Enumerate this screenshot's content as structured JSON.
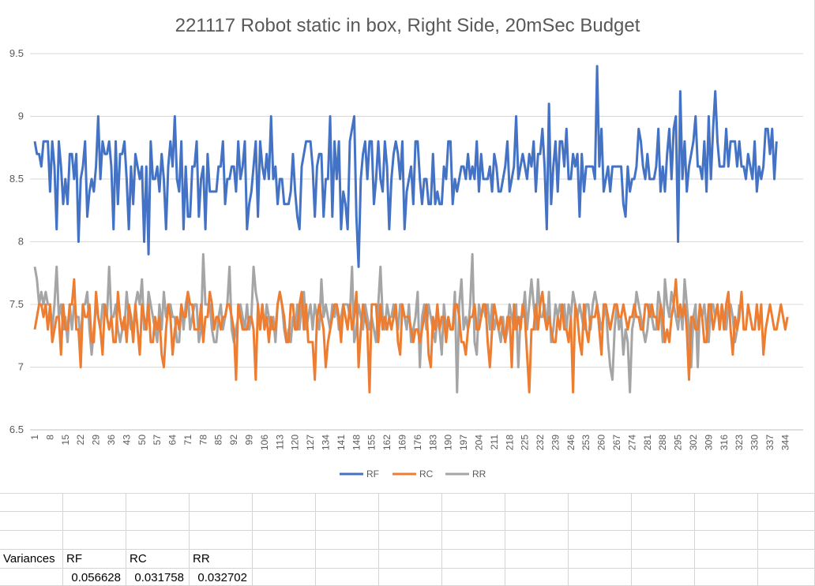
{
  "chart_data": {
    "type": "line",
    "title": "221117 Robot static in box, Right Side, 20mSec Budget",
    "ylim": [
      6.5,
      9.5
    ],
    "yticks": [
      "6.5",
      "7",
      "7.5",
      "8",
      "8.5",
      "9",
      "9.5"
    ],
    "x_count": 350,
    "x_tick_labels": [
      1,
      8,
      15,
      22,
      29,
      36,
      43,
      50,
      57,
      64,
      71,
      78,
      85,
      92,
      99,
      106,
      113,
      120,
      127,
      134,
      141,
      148,
      155,
      162,
      169,
      176,
      183,
      190,
      197,
      204,
      211,
      218,
      225,
      232,
      239,
      246,
      253,
      260,
      267,
      274,
      281,
      288,
      295,
      302,
      309,
      316,
      323,
      330,
      337,
      344
    ],
    "legend_position": "bottom",
    "series": [
      {
        "name": "RF",
        "color": "#4472C4",
        "values": [
          8.8,
          8.7,
          8.7,
          8.6,
          8.8,
          8.8,
          8.8,
          8.4,
          8.8,
          8.6,
          8.1,
          8.8,
          8.6,
          8.3,
          8.5,
          8.3,
          8.7,
          8.7,
          8.5,
          8.7,
          8.0,
          8.5,
          8.6,
          8.8,
          8.2,
          8.4,
          8.5,
          8.4,
          8.6,
          9.0,
          8.5,
          8.8,
          8.7,
          8.7,
          8.8,
          8.6,
          8.1,
          8.8,
          8.3,
          8.7,
          8.7,
          8.8,
          8.5,
          8.1,
          8.6,
          8.3,
          8.7,
          8.6,
          8.5,
          8.6,
          8.0,
          8.6,
          7.9,
          8.8,
          8.5,
          8.5,
          8.6,
          8.4,
          8.7,
          8.5,
          8.1,
          8.6,
          8.8,
          8.6,
          9.0,
          8.5,
          8.4,
          8.8,
          8.1,
          8.6,
          8.2,
          8.2,
          8.6,
          8.6,
          8.8,
          8.2,
          8.5,
          8.6,
          8.1,
          8.7,
          8.4,
          8.4,
          8.4,
          8.4,
          8.6,
          8.6,
          8.8,
          8.3,
          8.5,
          8.5,
          8.6,
          8.6,
          8.4,
          8.8,
          8.5,
          8.6,
          8.8,
          8.1,
          8.3,
          8.4,
          8.6,
          8.8,
          8.2,
          8.8,
          8.6,
          8.5,
          8.7,
          8.5,
          9.0,
          8.5,
          8.6,
          8.3,
          8.5,
          8.5,
          8.3,
          8.3,
          8.3,
          8.4,
          8.7,
          8.4,
          8.2,
          8.1,
          8.6,
          8.7,
          8.8,
          8.8,
          8.8,
          8.6,
          8.2,
          8.6,
          8.7,
          8.7,
          8.2,
          8.5,
          8.5,
          9.0,
          8.2,
          8.8,
          8.5,
          8.8,
          8.1,
          8.4,
          8.3,
          8.1,
          8.8,
          8.9,
          9.0,
          8.2,
          7.8,
          8.5,
          8.7,
          8.8,
          8.5,
          8.8,
          8.8,
          8.3,
          8.5,
          8.8,
          8.5,
          8.4,
          8.8,
          8.6,
          8.1,
          8.5,
          8.7,
          8.8,
          8.7,
          8.5,
          8.8,
          8.1,
          8.4,
          8.5,
          8.6,
          8.3,
          8.8,
          8.8,
          8.5,
          8.3,
          8.5,
          8.5,
          8.3,
          8.3,
          8.7,
          8.3,
          8.4,
          8.3,
          8.3,
          8.6,
          8.5,
          8.8,
          8.8,
          8.3,
          8.5,
          8.4,
          8.5,
          8.6,
          8.6,
          8.5,
          8.7,
          8.5,
          8.6,
          8.5,
          8.8,
          8.4,
          8.7,
          8.5,
          8.5,
          8.5,
          8.6,
          8.4,
          8.7,
          8.6,
          8.4,
          8.4,
          8.5,
          8.6,
          8.8,
          8.4,
          8.5,
          8.6,
          9.0,
          8.5,
          8.6,
          8.7,
          8.6,
          8.5,
          8.7,
          8.6,
          8.8,
          8.4,
          8.7,
          8.7,
          8.9,
          8.6,
          8.1,
          9.1,
          8.3,
          8.6,
          8.8,
          8.4,
          8.8,
          8.8,
          8.6,
          8.9,
          8.5,
          8.5,
          8.7,
          8.6,
          8.7,
          8.2,
          8.7,
          8.4,
          8.6,
          8.6,
          8.6,
          8.6,
          8.5,
          9.4,
          8.6,
          8.9,
          8.4,
          8.5,
          8.6,
          8.4,
          8.6,
          8.6,
          8.6,
          8.6,
          8.6,
          8.3,
          8.2,
          8.6,
          8.4,
          8.5,
          8.5,
          8.6,
          8.9,
          8.8,
          8.6,
          8.5,
          8.7,
          8.5,
          8.5,
          8.5,
          8.6,
          8.9,
          8.4,
          8.6,
          8.4,
          8.7,
          8.9,
          8.5,
          8.9,
          9.0,
          8.0,
          9.2,
          8.5,
          8.8,
          8.4,
          8.6,
          8.7,
          8.8,
          9.0,
          8.6,
          8.6,
          8.5,
          8.8,
          8.4,
          9.0,
          8.5,
          8.9,
          9.2,
          8.8,
          8.6,
          8.6,
          8.6,
          8.9,
          8.6,
          8.8,
          8.8,
          8.8,
          8.6,
          8.8,
          8.6,
          8.6,
          8.5,
          8.7,
          8.6,
          8.5,
          8.8,
          8.4,
          8.6,
          8.5,
          8.6,
          8.9,
          8.9,
          8.7,
          8.9,
          8.5,
          8.8
        ]
      },
      {
        "name": "RC",
        "color": "#ED7D31",
        "values": [
          7.3,
          7.4,
          7.5,
          7.5,
          7.4,
          7.5,
          7.3,
          7.5,
          7.2,
          7.3,
          7.4,
          7.4,
          7.1,
          7.5,
          7.3,
          7.3,
          7.5,
          7.5,
          7.7,
          7.3,
          7.3,
          7.0,
          7.5,
          7.4,
          7.4,
          7.5,
          7.2,
          7.2,
          7.6,
          7.4,
          7.3,
          7.1,
          7.5,
          7.4,
          7.3,
          7.4,
          7.2,
          7.2,
          7.6,
          7.4,
          7.3,
          7.4,
          7.2,
          7.5,
          7.4,
          7.2,
          7.5,
          7.3,
          7.1,
          7.5,
          7.4,
          7.3,
          7.5,
          7.2,
          7.2,
          7.4,
          7.3,
          7.4,
          7.1,
          7.0,
          7.3,
          7.5,
          7.4,
          7.1,
          7.3,
          7.4,
          7.3,
          7.5,
          7.4,
          7.4,
          7.6,
          7.5,
          7.5,
          7.3,
          7.3,
          7.3,
          7.5,
          7.2,
          7.4,
          7.4,
          7.6,
          7.5,
          7.3,
          7.4,
          7.4,
          7.3,
          7.4,
          7.4,
          7.5,
          7.5,
          7.4,
          7.3,
          6.9,
          7.5,
          7.4,
          7.3,
          7.3,
          7.3,
          7.4,
          7.4,
          7.3,
          6.9,
          7.5,
          7.3,
          7.5,
          7.3,
          7.4,
          7.2,
          7.4,
          7.3,
          7.3,
          7.5,
          7.6,
          7.5,
          7.4,
          7.2,
          7.2,
          7.5,
          7.5,
          7.3,
          7.3,
          7.5,
          7.6,
          7.3,
          7.5,
          7.2,
          7.2,
          7.2,
          6.9,
          7.4,
          7.5,
          7.4,
          7.3,
          7.0,
          7.2,
          7.3,
          7.4,
          7.5,
          7.5,
          7.4,
          7.2,
          7.5,
          7.4,
          7.3,
          7.5,
          7.3,
          7.4,
          7.6,
          7.0,
          7.3,
          7.5,
          7.4,
          7.3,
          6.8,
          7.5,
          7.5,
          7.5,
          7.2,
          7.5,
          7.3,
          7.4,
          7.3,
          7.4,
          7.3,
          7.4,
          7.5,
          7.2,
          7.1,
          7.5,
          7.4,
          7.4,
          7.4,
          7.3,
          7.2,
          7.3,
          7.3,
          7.2,
          7.3,
          7.4,
          7.5,
          7.1,
          7.0,
          7.4,
          7.3,
          7.5,
          7.3,
          7.4,
          7.4,
          7.2,
          7.4,
          7.3,
          7.3,
          7.5,
          7.5,
          7.4,
          7.2,
          7.2,
          7.1,
          7.3,
          7.4,
          7.4,
          7.5,
          7.3,
          7.3,
          7.4,
          7.5,
          7.5,
          7.2,
          7.0,
          7.3,
          7.5,
          7.4,
          7.3,
          7.4,
          7.3,
          7.2,
          7.4,
          7.4,
          7.0,
          7.5,
          7.3,
          7.4,
          7.3,
          7.5,
          7.4,
          7.1,
          6.8,
          7.3,
          7.3,
          7.5,
          7.3,
          7.5,
          7.6,
          7.4,
          7.3,
          7.4,
          7.3,
          7.2,
          7.2,
          7.4,
          7.3,
          7.5,
          7.3,
          7.3,
          7.2,
          7.4,
          6.8,
          7.5,
          7.4,
          7.2,
          7.1,
          7.5,
          7.3,
          7.2,
          7.4,
          7.4,
          7.4,
          7.5,
          7.3,
          7.1,
          7.5,
          7.5,
          7.4,
          7.3,
          7.4,
          7.5,
          7.5,
          7.4,
          7.4,
          7.5,
          7.4,
          7.3,
          7.4,
          7.4,
          7.5,
          7.4,
          7.4,
          7.3,
          7.3,
          7.5,
          7.5,
          7.4,
          7.5,
          7.4,
          7.4,
          7.3,
          7.5,
          7.4,
          7.2,
          7.3,
          7.2,
          7.4,
          7.5,
          7.7,
          7.4,
          7.5,
          7.4,
          7.5,
          7.3,
          6.9,
          7.4,
          7.4,
          7.3,
          7.3,
          7.5,
          7.4,
          7.2,
          7.2,
          7.5,
          7.5,
          7.3,
          7.4,
          7.5,
          7.3,
          7.5,
          7.3,
          7.5,
          7.6,
          7.3,
          7.1,
          7.4,
          7.3,
          7.4,
          7.6,
          7.3,
          7.3,
          7.5,
          7.4,
          7.3,
          7.3,
          7.5,
          7.3,
          7.5,
          7.1,
          7.3,
          7.4,
          7.5,
          7.4,
          7.3,
          7.3,
          7.4,
          7.5,
          7.4,
          7.3,
          7.4
        ]
      },
      {
        "name": "RR",
        "color": "#A5A5A5",
        "values": [
          7.8,
          7.7,
          7.5,
          7.6,
          7.5,
          7.6,
          7.5,
          7.5,
          7.3,
          7.5,
          7.8,
          7.4,
          7.5,
          7.3,
          7.4,
          7.2,
          7.5,
          7.3,
          7.5,
          7.4,
          7.4,
          7.2,
          7.5,
          7.5,
          7.6,
          7.3,
          7.1,
          7.3,
          7.5,
          7.4,
          7.3,
          7.5,
          7.5,
          7.4,
          7.8,
          7.4,
          7.4,
          7.5,
          7.3,
          7.2,
          7.3,
          7.3,
          7.6,
          7.4,
          7.3,
          7.3,
          7.5,
          7.6,
          7.5,
          7.7,
          7.3,
          7.3,
          7.6,
          7.5,
          7.4,
          7.3,
          7.2,
          7.5,
          7.3,
          7.6,
          7.4,
          7.5,
          7.5,
          7.4,
          7.4,
          7.2,
          7.2,
          7.5,
          7.3,
          7.5,
          7.6,
          7.3,
          7.4,
          7.5,
          7.5,
          7.2,
          7.3,
          7.9,
          7.5,
          7.5,
          7.5,
          7.3,
          7.2,
          7.2,
          7.4,
          7.5,
          7.3,
          7.4,
          7.5,
          7.8,
          7.3,
          7.2,
          7.3,
          7.4,
          7.5,
          7.4,
          7.3,
          7.5,
          7.3,
          7.4,
          7.8,
          7.6,
          7.5,
          7.3,
          7.5,
          7.3,
          7.5,
          7.4,
          7.3,
          7.4,
          7.2,
          7.5,
          7.6,
          7.5,
          7.3,
          7.2,
          7.3,
          7.2,
          7.4,
          7.3,
          7.5,
          7.3,
          7.5,
          7.6,
          7.3,
          7.4,
          7.5,
          7.3,
          7.5,
          7.4,
          7.3,
          7.7,
          7.4,
          7.5,
          7.4,
          7.3,
          7.5,
          7.4,
          7.5,
          7.3,
          7.4,
          7.5,
          7.5,
          7.5,
          7.4,
          7.8,
          7.2,
          7.3,
          7.5,
          7.4,
          7.3,
          7.5,
          7.4,
          7.3,
          7.4,
          7.3,
          7.2,
          7.5,
          7.8,
          7.4,
          7.3,
          7.5,
          7.4,
          7.4,
          7.5,
          7.4,
          7.3,
          7.5,
          7.5,
          7.4,
          7.3,
          7.5,
          7.2,
          7.3,
          7.4,
          7.6,
          7.0,
          7.4,
          7.5,
          7.3,
          7.5,
          7.4,
          7.3,
          7.2,
          7.4,
          7.3,
          7.1,
          7.5,
          7.3,
          7.4,
          7.3,
          7.3,
          7.6,
          6.8,
          7.5,
          7.7,
          7.3,
          7.4,
          7.3,
          7.5,
          7.9,
          7.2,
          7.1,
          7.5,
          7.4,
          7.5,
          7.4,
          7.5,
          7.3,
          7.5,
          7.3,
          7.4,
          7.3,
          7.2,
          7.4,
          7.2,
          7.3,
          7.5,
          7.4,
          7.3,
          7.5,
          7.0,
          7.4,
          7.4,
          7.6,
          7.3,
          7.5,
          7.7,
          7.5,
          7.3,
          7.7,
          7.4,
          7.4,
          7.5,
          7.3,
          7.6,
          7.2,
          7.3,
          7.5,
          7.4,
          7.5,
          7.4,
          7.5,
          7.3,
          7.5,
          7.4,
          7.6,
          7.5,
          7.4,
          7.5,
          7.4,
          7.3,
          7.5,
          7.5,
          7.3,
          7.5,
          7.6,
          7.5,
          7.4,
          7.3,
          7.4,
          7.5,
          7.2,
          7.0,
          6.9,
          7.3,
          7.5,
          7.3,
          7.4,
          7.1,
          7.3,
          7.2,
          6.8,
          7.3,
          7.4,
          7.6,
          7.5,
          7.4,
          7.3,
          7.2,
          7.3,
          7.5,
          7.4,
          7.3,
          7.3,
          7.6,
          7.5,
          7.2,
          7.7,
          7.5,
          7.4,
          7.6,
          7.5,
          7.4,
          7.3,
          7.5,
          7.3,
          7.7,
          7.5,
          7.3,
          7.0,
          7.4,
          7.5,
          7.0,
          7.5,
          7.4,
          7.5,
          7.3,
          7.2,
          7.5,
          7.5,
          7.4,
          7.5,
          7.3,
          7.5,
          7.4,
          7.3,
          7.5,
          7.5,
          7.4,
          7.2,
          7.3,
          7.5
        ]
      }
    ]
  },
  "sheet": {
    "label_variances": "Variances",
    "headers": [
      "RF",
      "RC",
      "RR"
    ],
    "values": [
      "0.056628",
      "0.031758",
      "0.032702"
    ]
  },
  "colors": {
    "grid": "#d9d9d9",
    "axis_text": "#595959",
    "title": "#595959"
  }
}
